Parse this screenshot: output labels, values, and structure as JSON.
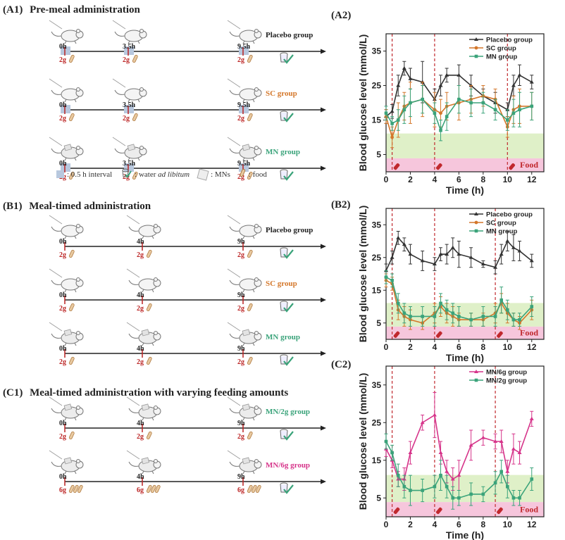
{
  "panels": {
    "a1": {
      "label": "(A1)",
      "title": "Pre-meal administration"
    },
    "b1": {
      "label": "(B1)",
      "title": "Meal-timed administration"
    },
    "c1": {
      "label": "(C1)",
      "title": "Meal-timed administration with varying feeding amounts"
    },
    "a2": {
      "label": "(A2)"
    },
    "b2": {
      "label": "(B2)"
    },
    "c2": {
      "label": "(C2)"
    }
  },
  "schematics": {
    "a1": {
      "rows": [
        {
          "group": "Placebo group",
          "color": "#222222",
          "times": [
            "0h",
            "3.5h",
            "9.5h"
          ],
          "doses": [
            "2g",
            "2g",
            "2g"
          ],
          "interval": true
        },
        {
          "group": "SC group",
          "color": "#d4772a",
          "times": [
            "0h",
            "3.5h",
            "9.5h"
          ],
          "doses": [
            "2g",
            "2g",
            "2g"
          ],
          "interval": true
        },
        {
          "group": "MN group",
          "color": "#3aa37a",
          "times": [
            "0h",
            "3.5h",
            "9.5h"
          ],
          "doses": [
            "2g",
            "2g",
            "2g"
          ],
          "interval": true
        }
      ],
      "legend": {
        "interval": ": 0.5 h interval",
        "water_prefix": ": water ",
        "water_italic": "ad libitum",
        "mns": ": MNs",
        "food": ": food"
      }
    },
    "b1": {
      "rows": [
        {
          "group": "Placebo group",
          "color": "#222222",
          "times": [
            "0h",
            "4h",
            "9h"
          ],
          "doses": [
            "2g",
            "2g",
            "2g"
          ],
          "interval": false
        },
        {
          "group": "SC group",
          "color": "#d4772a",
          "times": [
            "0h",
            "4h",
            "9h"
          ],
          "doses": [
            "2g",
            "2g",
            "2g"
          ],
          "interval": false
        },
        {
          "group": "MN group",
          "color": "#3aa37a",
          "times": [
            "0h",
            "4h",
            "9h"
          ],
          "doses": [
            "2g",
            "2g",
            "2g"
          ],
          "interval": false
        }
      ]
    },
    "c1": {
      "rows": [
        {
          "group": "MN/2g group",
          "color": "#3aa37a",
          "times": [
            "0h",
            "4h",
            "9h"
          ],
          "doses": [
            "2g",
            "2g",
            "2g"
          ],
          "interval": false
        },
        {
          "group": "MN/6g group",
          "color": "#d6348a",
          "times": [
            "0h",
            "4h",
            "9h"
          ],
          "doses": [
            "6g",
            "6g",
            "6g"
          ],
          "interval": false
        }
      ]
    }
  },
  "chart_data": [
    {
      "id": "A2",
      "type": "line",
      "xlabel": "Time (h)",
      "ylabel": "Blood glucose level (mmol/L)",
      "xlim": [
        0,
        13
      ],
      "ylim": [
        0,
        40
      ],
      "xticks": [
        0,
        2,
        4,
        6,
        8,
        10,
        12
      ],
      "yticks": [
        5,
        15,
        25,
        35
      ],
      "normal_band": [
        3.9,
        11.1
      ],
      "low_band": [
        0,
        3.9
      ],
      "food_label": "Food",
      "feed_times": [
        0.5,
        4,
        10
      ],
      "series": [
        {
          "name": "Placebo group",
          "color": "#333333",
          "marker": "triangle",
          "x": [
            0,
            0.5,
            1,
            1.5,
            2,
            3,
            4,
            4.5,
            5,
            6,
            7,
            8,
            9,
            10,
            10.5,
            11,
            12
          ],
          "values": [
            16,
            17.5,
            25,
            30,
            27,
            26,
            21,
            25,
            28,
            28,
            25,
            22,
            20,
            18,
            25,
            28,
            26
          ],
          "err": [
            2,
            2,
            3,
            2,
            3,
            6,
            3,
            3,
            2,
            3,
            3,
            2,
            3,
            2,
            3,
            3,
            2
          ]
        },
        {
          "name": "SC group",
          "color": "#d4772a",
          "marker": "circle",
          "x": [
            0,
            0.5,
            1,
            1.5,
            2,
            3,
            4,
            4.5,
            5,
            6,
            7,
            8,
            9,
            10,
            10.5,
            11,
            12
          ],
          "values": [
            16,
            10,
            15,
            19,
            20,
            21,
            18,
            17,
            19,
            20,
            21,
            22,
            21,
            13,
            18,
            19,
            19
          ],
          "err": [
            2,
            3,
            5,
            4,
            6,
            5,
            5,
            4,
            4,
            5,
            4,
            3,
            3,
            3,
            4,
            5,
            4
          ]
        },
        {
          "name": "MN group",
          "color": "#3aa37a",
          "marker": "square",
          "x": [
            0,
            0.5,
            1,
            1.5,
            2,
            3,
            4,
            4.5,
            5,
            6,
            7,
            8,
            9,
            10,
            10.5,
            11,
            12
          ],
          "values": [
            17,
            14,
            15,
            18,
            20,
            21,
            17,
            12,
            16,
            21,
            20,
            20,
            18,
            15,
            17,
            18,
            19
          ],
          "err": [
            2,
            2,
            3,
            4,
            4,
            4,
            3,
            3,
            4,
            4,
            4,
            3,
            3,
            3,
            4,
            5,
            4
          ]
        }
      ]
    },
    {
      "id": "B2",
      "type": "line",
      "xlabel": "Time (h)",
      "ylabel": "Blood glucose level (mmol/L)",
      "xlim": [
        0,
        13
      ],
      "ylim": [
        0,
        40
      ],
      "xticks": [
        0,
        2,
        4,
        6,
        8,
        10,
        12
      ],
      "yticks": [
        5,
        15,
        25,
        35
      ],
      "normal_band": [
        3.9,
        11.1
      ],
      "low_band": [
        0,
        3.9
      ],
      "food_label": "Food",
      "feed_times": [
        0.5,
        4,
        9
      ],
      "series": [
        {
          "name": "Placebo group",
          "color": "#333333",
          "marker": "triangle",
          "x": [
            0,
            0.5,
            1,
            1.5,
            2,
            3,
            4,
            4.5,
            5,
            5.5,
            6,
            7,
            8,
            9,
            9.5,
            10,
            10.5,
            11,
            12
          ],
          "values": [
            21,
            25,
            31,
            29,
            26,
            24,
            23,
            26,
            26,
            28,
            26,
            25,
            23,
            22,
            26,
            30,
            28,
            27,
            24
          ],
          "err": [
            2,
            2,
            2,
            2,
            3,
            3,
            2,
            2,
            3,
            3,
            4,
            3,
            1,
            2,
            3,
            3,
            4,
            3,
            2
          ]
        },
        {
          "name": "SC group",
          "color": "#d4772a",
          "marker": "circle",
          "x": [
            0,
            0.5,
            1,
            1.5,
            2,
            3,
            4,
            4.5,
            5,
            5.5,
            6,
            7,
            8,
            9,
            9.5,
            10,
            10.5,
            11,
            12
          ],
          "values": [
            18,
            17,
            9,
            7,
            6,
            5,
            8,
            10,
            8,
            7,
            6,
            6,
            6,
            8,
            11,
            8,
            6,
            5,
            9
          ],
          "err": [
            2,
            2,
            3,
            3,
            3,
            2,
            3,
            3,
            3,
            3,
            2,
            2,
            2,
            3,
            3,
            3,
            2,
            2,
            3
          ]
        },
        {
          "name": "MN group",
          "color": "#3aa37a",
          "marker": "square",
          "x": [
            0,
            0.5,
            1,
            1.5,
            2,
            3,
            4,
            4.5,
            5,
            5.5,
            6,
            7,
            8,
            9,
            9.5,
            10,
            10.5,
            11,
            12
          ],
          "values": [
            19,
            18,
            11,
            8,
            7,
            7,
            7,
            11,
            9,
            8,
            7,
            6,
            7,
            7,
            12,
            9,
            6,
            6,
            10
          ],
          "err": [
            2,
            2,
            3,
            3,
            3,
            3,
            3,
            3,
            3,
            3,
            3,
            2,
            3,
            3,
            4,
            3,
            2,
            2,
            3
          ]
        }
      ]
    },
    {
      "id": "C2",
      "type": "line",
      "xlabel": "Time (h)",
      "ylabel": "Blood glucose level (mmol/L)",
      "xlim": [
        0,
        13
      ],
      "ylim": [
        0,
        40
      ],
      "xticks": [
        0,
        2,
        4,
        6,
        8,
        10,
        12
      ],
      "yticks": [
        5,
        15,
        25,
        35
      ],
      "normal_band": [
        3.9,
        11.1
      ],
      "low_band": [
        0,
        3.9
      ],
      "food_label": "Food",
      "feed_times": [
        0.5,
        4,
        9
      ],
      "series": [
        {
          "name": "MN/6g group",
          "color": "#d6348a",
          "marker": "triangle",
          "x": [
            0,
            0.5,
            1,
            1.5,
            2,
            3,
            4,
            4.5,
            5,
            5.5,
            6,
            7,
            8,
            9,
            9.5,
            10,
            10.5,
            11,
            12
          ],
          "values": [
            18,
            15,
            10,
            10,
            17,
            25,
            27,
            17,
            12,
            10,
            11,
            19,
            21,
            20,
            20,
            12,
            18,
            17,
            26
          ],
          "err": [
            2,
            2,
            2,
            3,
            3,
            2,
            6,
            3,
            3,
            3,
            4,
            4,
            2,
            2,
            3,
            3,
            4,
            3,
            2
          ]
        },
        {
          "name": "MN/2g group",
          "color": "#3aa37a",
          "marker": "square",
          "x": [
            0,
            0.5,
            1,
            1.5,
            2,
            3,
            4,
            4.5,
            5,
            5.5,
            6,
            7,
            8,
            9,
            9.5,
            10,
            10.5,
            11,
            12
          ],
          "values": [
            20,
            17,
            11,
            8,
            7,
            7,
            8,
            11,
            8,
            5,
            5,
            6,
            6,
            9,
            12,
            8,
            5,
            5,
            10
          ],
          "err": [
            2,
            2,
            3,
            3,
            4,
            3,
            3,
            4,
            3,
            3,
            2,
            3,
            2,
            3,
            3,
            3,
            2,
            2,
            3
          ]
        }
      ]
    }
  ]
}
